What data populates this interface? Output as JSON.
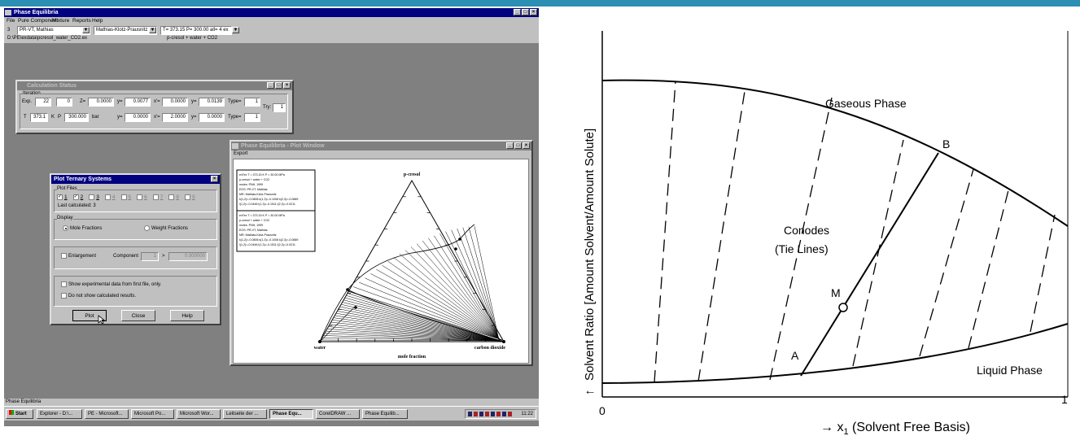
{
  "main_window": {
    "title": "Phase Equilibria",
    "menu": [
      "File",
      "Pure Component",
      "Mixture",
      "Reports",
      "Help"
    ],
    "num_field": "3",
    "model_select": "PR-VT, Mathias",
    "mixing_select": "Mathias-Klotz-Prausnitz",
    "condition_select": "T= 373.15 P= 300.00 all= 4 ex",
    "file_path": "D:\\PE\\exdata\\pcresol_water_CO2.ex",
    "system_name": "p-cresol + water + CO2",
    "status_text": "Phase Equilibria"
  },
  "calc_status": {
    "title": "Calculation Status",
    "group_label": "Iteration",
    "row1": {
      "exp_label": "Exp.",
      "exp": "22",
      "iter": "0",
      "z_label": "Z=",
      "z": "0.0000",
      "yv_label": "y=",
      "yv": "0.0077",
      "x2_label": "x'=",
      "x2": "0.0000",
      "y2_label": "y=",
      "y2": "0.0139",
      "type_label": "Type=",
      "type": "1"
    },
    "try_label": "Try:",
    "try_value": "1",
    "row2": {
      "t_label": "T",
      "t": "373.1",
      "k_label": "K",
      "p_label": "P",
      "p": "300.000",
      "bar_label": "bar",
      "yv_label": "y=",
      "yv": "0.0000",
      "x2_label": "x'=",
      "x2": "2.0000",
      "y2_label": "y=",
      "y2": "0.0000",
      "type_label": "Type=",
      "type": "1"
    }
  },
  "plot_ternary": {
    "title": "Plot Ternary Systems",
    "plot_files_label": "Plot Files",
    "files": [
      {
        "label": "1",
        "checked": true,
        "enabled": true
      },
      {
        "label": "2",
        "checked": true,
        "enabled": true
      },
      {
        "label": "3",
        "checked": false,
        "enabled": true
      },
      {
        "label": "4",
        "checked": false,
        "enabled": false
      },
      {
        "label": "5",
        "checked": false,
        "enabled": false
      },
      {
        "label": "6",
        "checked": false,
        "enabled": false
      },
      {
        "label": "7",
        "checked": false,
        "enabled": false
      },
      {
        "label": "8",
        "checked": false,
        "enabled": false
      },
      {
        "label": "9",
        "checked": false,
        "enabled": false
      }
    ],
    "last_calculated": "Last calculated:  3",
    "display_label": "Display",
    "mole_fractions": "Mole Fractions",
    "weight_fractions": "Weight Fractions",
    "enlargement": "Enlargement",
    "component_label": "Component",
    "component_value": "1",
    "gt": ">",
    "enlargement_value": "0.000000",
    "show_exp": "Show experimental data from first file, only.",
    "no_calc": "Do not show calculated results.",
    "plot_btn": "Plot",
    "close_btn": "Close",
    "help_btn": "Help"
  },
  "plot_window": {
    "title": "Phase Equilibria - Plot Window",
    "menu_export": "Export",
    "top_label": "p-cresol",
    "left_label": "water",
    "right_label": "carbon dioxide",
    "bottom_label": "mole fraction",
    "legend1": [
      "exTex T = 373.15 K         P = 30.00 MPa",
      "p-cresol + water + CO2",
      "moles: PNH, 1999",
      "EOS: PR-VT, Mathias",
      "MR: Mathias-Klotz-Prausnitz",
      "k(1,2)=-0.0806    k(1,3)=-0.1008    k(2,3)=-0.0889",
      "l(1,2)=-0.0446    l(1,3)=-0.1511    l(2,3)=-0.0211"
    ],
    "legend2": [
      "exTex T = 373.15 K         P = 30.00 MPa",
      "p-cresol + water + CO2",
      "moles: PNH, 1999",
      "EOS: PR-VT, Mathias",
      "MR: Mathias-Klotz-Prausnitz",
      "k(1,2)=-0.0806    k(1,3)=-0.1008    k(2,3)=-0.0889",
      "l(1,2)=-0.0446    l(1,3)=-0.1511    l(2,3)=-0.0211"
    ]
  },
  "taskbar": {
    "start": "Start",
    "buttons": [
      "Explorer - D:\\...",
      "PE - Microsoft...",
      "Microsoft Po...",
      "Microsoft Wor...",
      "Leitseite der ...",
      "Phase Equ...",
      "CorelDRAW ...",
      "Phase Equilib..."
    ],
    "clock": "11:22"
  },
  "diagram": {
    "y_label": "Solvent Ratio [Amount Solvent/Amount Solute]",
    "y_arrow": "↑",
    "x_label_arrow": "→ x",
    "x_label_sub": "1",
    "x_label_rest": " (Solvent Free Basis)",
    "x_min": "0",
    "x_max": "1",
    "gaseous": "Gaseous Phase",
    "liquid": "Liquid Phase",
    "conodes_1": "Conodes",
    "conodes_2": "(Tie Lines)",
    "point_a": "A",
    "point_b": "B",
    "point_m": "M"
  },
  "colors": {
    "top_bar": "#2a8fb3",
    "title_bar": "#000080",
    "desktop": "#808080",
    "dialog": "#c0c0c0"
  }
}
